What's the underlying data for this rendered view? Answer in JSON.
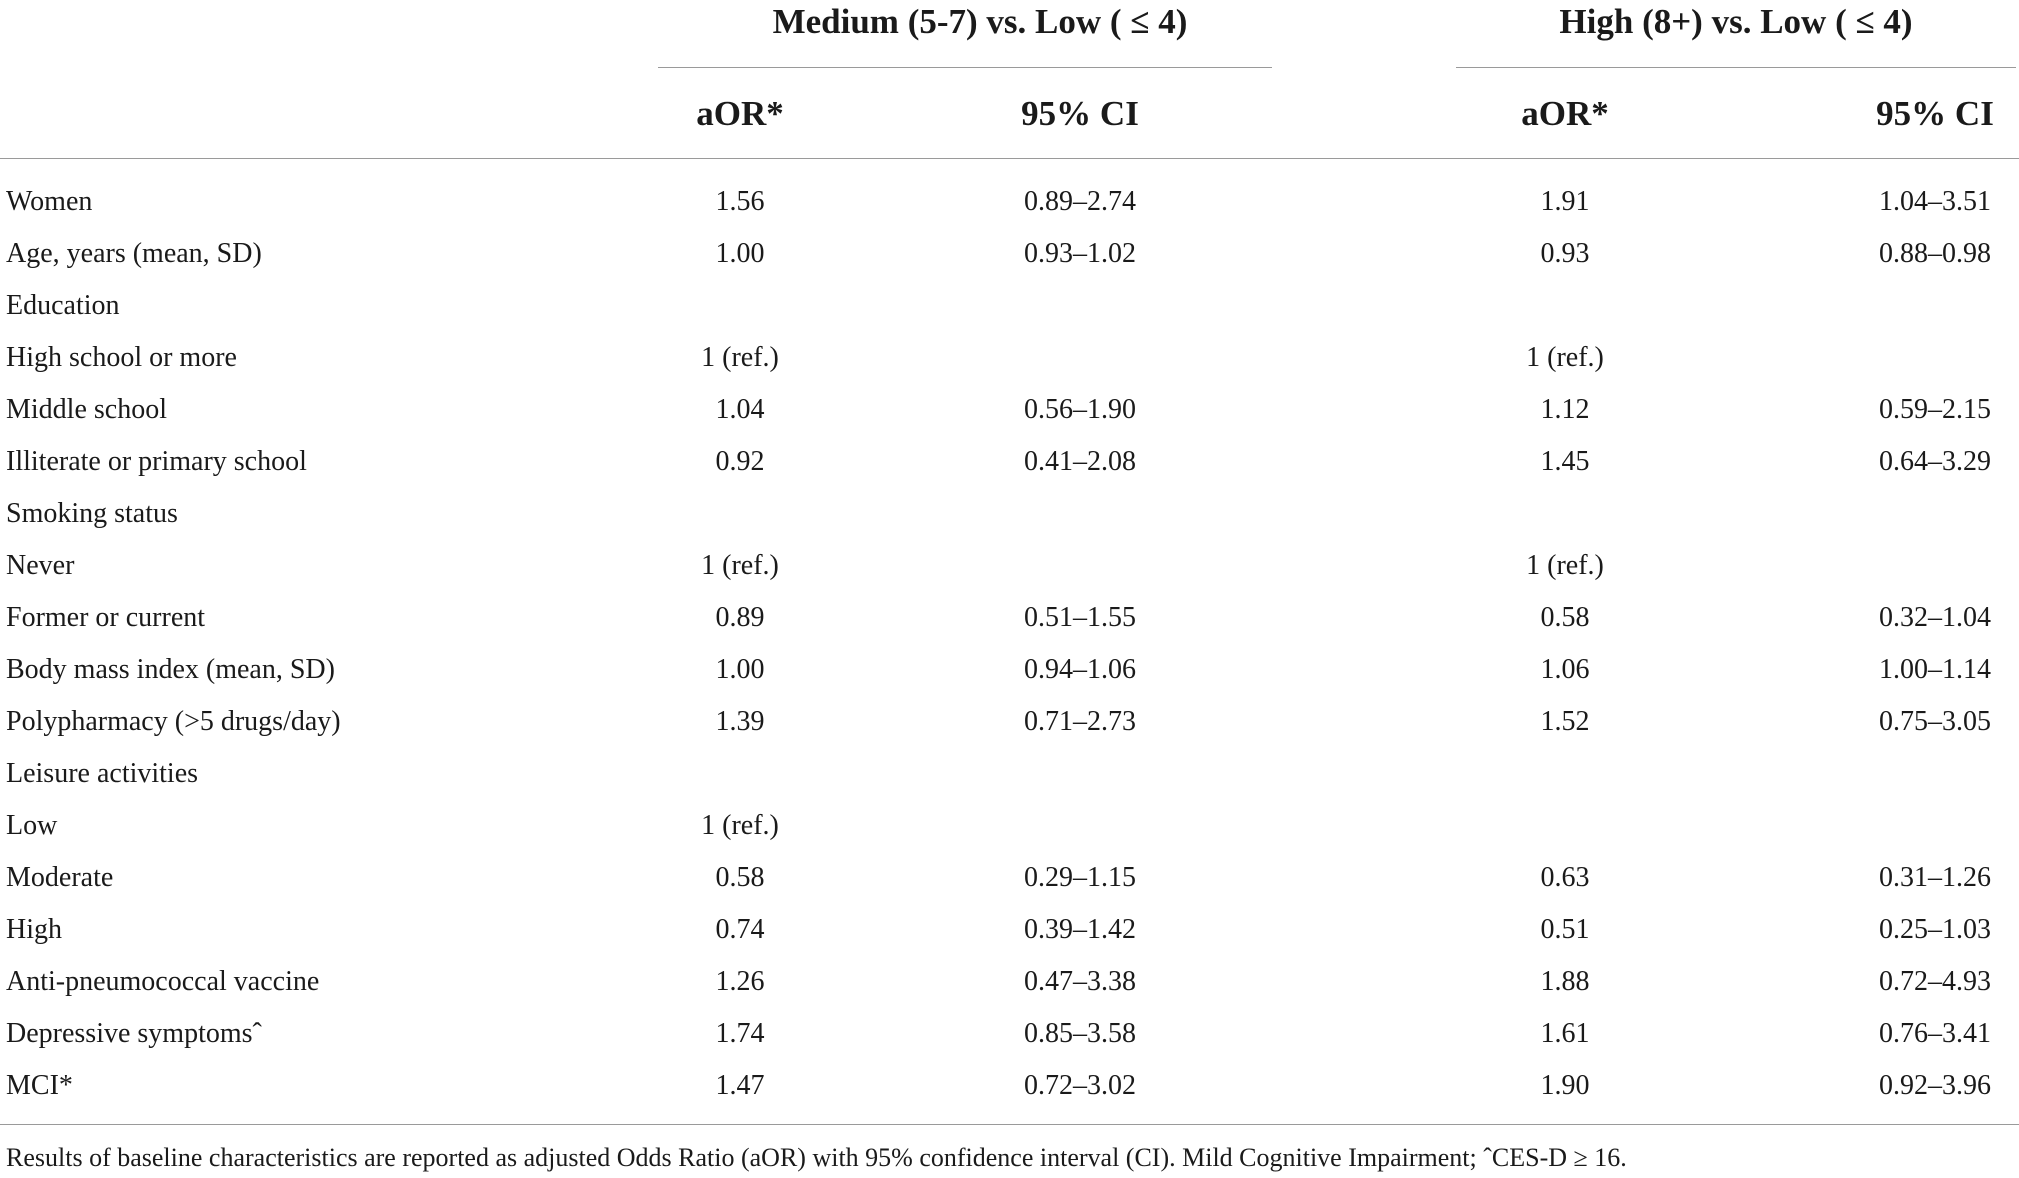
{
  "table": {
    "groups": [
      "Medium (5-7) vs. Low ( ≤ 4)",
      "High (8+) vs. Low ( ≤ 4)"
    ],
    "subheaders": [
      "aOR*",
      "95% CI",
      "aOR*",
      "95% CI"
    ],
    "rows": [
      {
        "label": "Women",
        "m_aor": "1.56",
        "m_ci": "0.89–2.74",
        "h_aor": "1.91",
        "h_ci": "1.04–3.51"
      },
      {
        "label": "Age, years (mean, SD)",
        "m_aor": "1.00",
        "m_ci": "0.93–1.02",
        "h_aor": "0.93",
        "h_ci": "0.88–0.98"
      },
      {
        "label": "Education",
        "m_aor": "",
        "m_ci": "",
        "h_aor": "",
        "h_ci": ""
      },
      {
        "label": "High school or more",
        "m_aor": "1 (ref.)",
        "m_ci": "",
        "h_aor": "1 (ref.)",
        "h_ci": ""
      },
      {
        "label": "Middle school",
        "m_aor": "1.04",
        "m_ci": "0.56–1.90",
        "h_aor": "1.12",
        "h_ci": "0.59–2.15"
      },
      {
        "label": "Illiterate or primary school",
        "m_aor": "0.92",
        "m_ci": "0.41–2.08",
        "h_aor": "1.45",
        "h_ci": "0.64–3.29"
      },
      {
        "label": "Smoking status",
        "m_aor": "",
        "m_ci": "",
        "h_aor": "",
        "h_ci": ""
      },
      {
        "label": "Never",
        "m_aor": "1 (ref.)",
        "m_ci": "",
        "h_aor": "1 (ref.)",
        "h_ci": ""
      },
      {
        "label": "Former or current",
        "m_aor": "0.89",
        "m_ci": "0.51–1.55",
        "h_aor": "0.58",
        "h_ci": "0.32–1.04"
      },
      {
        "label": "Body mass index (mean, SD)",
        "m_aor": "1.00",
        "m_ci": "0.94–1.06",
        "h_aor": "1.06",
        "h_ci": "1.00–1.14"
      },
      {
        "label": "Polypharmacy (>5 drugs/day)",
        "m_aor": "1.39",
        "m_ci": "0.71–2.73",
        "h_aor": "1.52",
        "h_ci": "0.75–3.05"
      },
      {
        "label": "Leisure activities",
        "m_aor": "",
        "m_ci": "",
        "h_aor": "",
        "h_ci": ""
      },
      {
        "label": "Low",
        "m_aor": "1 (ref.)",
        "m_ci": "",
        "h_aor": "",
        "h_ci": ""
      },
      {
        "label": "Moderate",
        "m_aor": "0.58",
        "m_ci": "0.29–1.15",
        "h_aor": "0.63",
        "h_ci": "0.31–1.26"
      },
      {
        "label": "High",
        "m_aor": "0.74",
        "m_ci": "0.39–1.42",
        "h_aor": "0.51",
        "h_ci": "0.25–1.03"
      },
      {
        "label": "Anti-pneumococcal vaccine",
        "m_aor": "1.26",
        "m_ci": "0.47–3.38",
        "h_aor": "1.88",
        "h_ci": "0.72–4.93"
      },
      {
        "label": "Depressive symptomsˆ",
        "m_aor": "1.74",
        "m_ci": "0.85–3.58",
        "h_aor": "1.61",
        "h_ci": "0.76–3.41"
      },
      {
        "label": "MCI*",
        "m_aor": "1.47",
        "m_ci": "0.72–3.02",
        "h_aor": "1.90",
        "h_ci": "0.92–3.96"
      }
    ]
  },
  "footnote": "Results of baseline characteristics are reported as adjusted Odds Ratio (aOR) with 95% confidence interval (CI). Mild Cognitive Impairment; ˆCES-D ≥ 16."
}
